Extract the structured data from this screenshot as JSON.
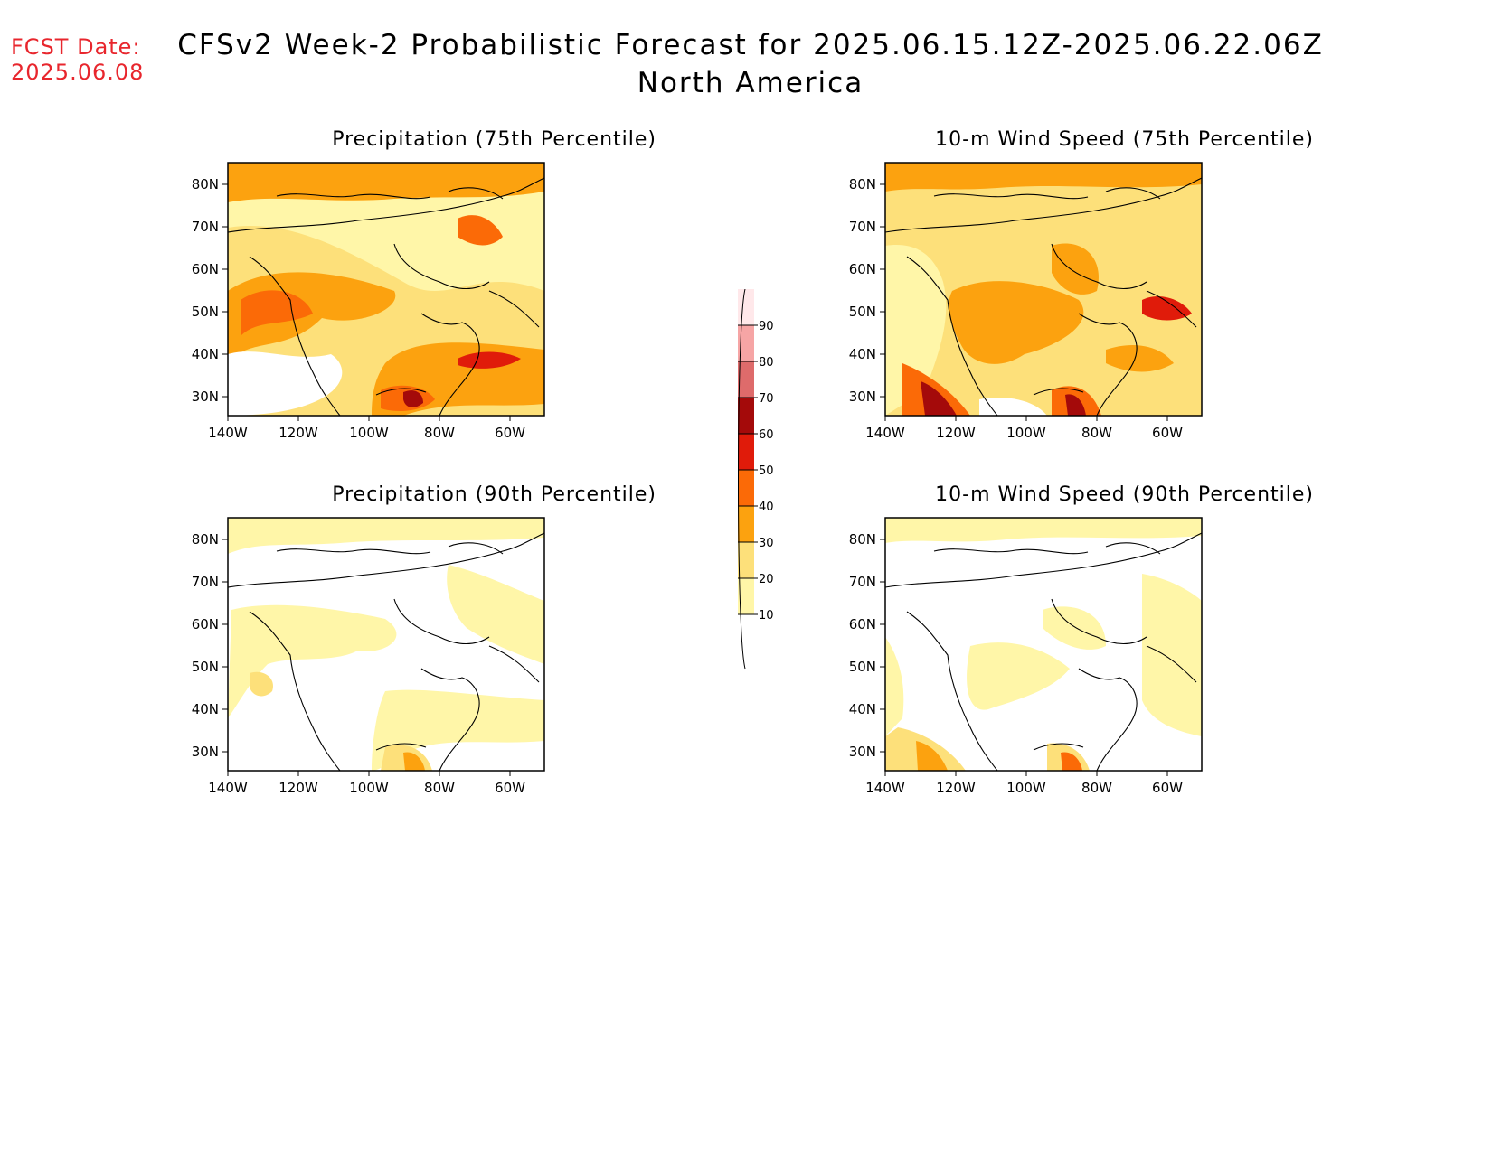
{
  "header": {
    "fcst_label": "FCST Date:",
    "fcst_date": "2025.06.08",
    "title": "CFSv2 Week-2 Probabilistic Forecast for 2025.06.15.12Z-2025.06.22.06Z",
    "subtitle": "North America"
  },
  "axes": {
    "lon_ticks": [
      "140W",
      "120W",
      "100W",
      "80W",
      "60W"
    ],
    "lat_ticks": [
      "80N",
      "70N",
      "60N",
      "50N",
      "40N",
      "30N"
    ]
  },
  "panels": [
    {
      "id": "precip-75",
      "title": "Precipitation (75th Percentile)"
    },
    {
      "id": "wind-75",
      "title": "10-m Wind Speed (75th Percentile)"
    },
    {
      "id": "precip-90",
      "title": "Precipitation (90th Percentile)"
    },
    {
      "id": "wind-90",
      "title": "10-m Wind Speed (90th Percentile)"
    }
  ],
  "legend": {
    "labels": [
      "10",
      "20",
      "30",
      "40",
      "50",
      "60",
      "70",
      "80",
      "90"
    ],
    "colors": [
      "#ffffff",
      "#fff6a8",
      "#fde07a",
      "#fca20f",
      "#fb6a07",
      "#e01b0a",
      "#a40a0a",
      "#de6b6b",
      "#f6a5a5",
      "#ffe8ea"
    ]
  }
}
